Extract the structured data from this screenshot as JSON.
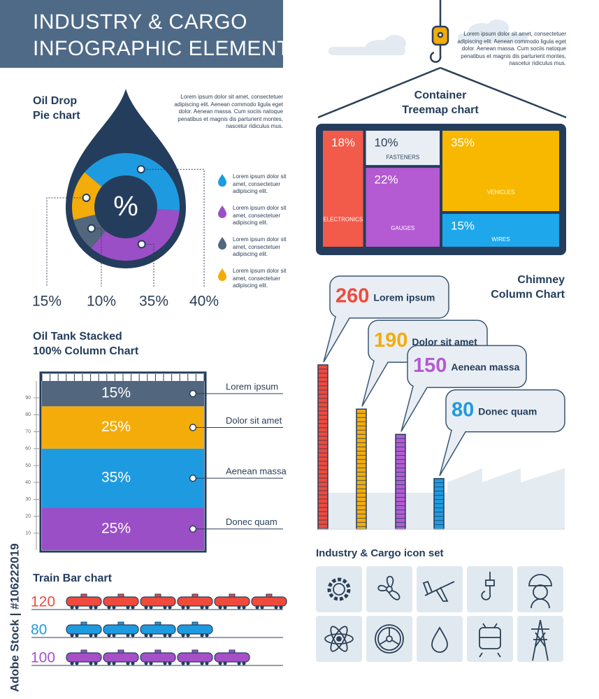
{
  "header": {
    "title_lines": [
      "INDUSTRY & CARGO",
      "INFOGRAPHIC ELEMENTS"
    ]
  },
  "watermark": "Adobe Stock | #106222019",
  "icon_set_title": "Industry & Cargo icon set",
  "chart_data": [
    {
      "type": "pie",
      "title_lines": [
        "Oil Drop",
        "Pie chart"
      ],
      "annotation": "Lorem ipsum dolor sit amet, consectetuer adipiscing elit. Aenean commodo ligula eget dolor. Aenean massa. Cum sociis natoque penatibus et magnis dis parturient montes, nascetur ridiculus mus.",
      "categories": [
        "Lorem ipsum dolor sit amet, consectetuer adipiscing elit.",
        "Lorem ipsum dolor sit amet, consectetuer adipiscing elit.",
        "Lorem ipsum dolor sit amet, consectetuer adipiscing elit.",
        "Lorem ipsum dolor sit amet, consectetuer adipiscing elit."
      ],
      "values": [
        40,
        35,
        10,
        15
      ],
      "value_labels": [
        "40%",
        "35%",
        "10%",
        "15%"
      ],
      "colors": [
        "#1e9be0",
        "#9b4fc7",
        "#52667e",
        "#f4ac0a"
      ],
      "center_label": "%"
    },
    {
      "type": "treemap",
      "title_lines": [
        "Container",
        "Treemap chart"
      ],
      "annotation": "Lorem ipsum dolor sit amet, consectetuer adipiscing elit. Aenean commodo ligula eget dolor. Aenean massa. Cum sociis natoque penatibus et magnis dis parturient montes, nascetur ridiculus mus.",
      "categories": [
        "ELECTRONICS",
        "FASTENERS",
        "GAUGES",
        "VEHICLES",
        "WIRES"
      ],
      "values": [
        18,
        10,
        22,
        35,
        15
      ],
      "value_labels": [
        "18%",
        "10%",
        "22%",
        "35%",
        "15%"
      ],
      "colors": [
        "#f25a4a",
        "#e8eef4",
        "#b45ad2",
        "#f8b800",
        "#1ea7ea"
      ]
    },
    {
      "type": "bar",
      "stacked": true,
      "title_lines": [
        "Oil Tank Stacked",
        "100% Column Chart"
      ],
      "series": [
        {
          "name": "Donec quam",
          "color": "#9b4fc7",
          "values": [
            25
          ],
          "value_labels": [
            "25%"
          ]
        },
        {
          "name": "Aenean massa",
          "color": "#1e9be0",
          "values": [
            35
          ],
          "value_labels": [
            "35%"
          ]
        },
        {
          "name": "Dolor sit amet",
          "color": "#f4ac0a",
          "values": [
            25
          ],
          "value_labels": [
            "25%"
          ]
        },
        {
          "name": "Lorem ipsum",
          "color": "#52667e",
          "values": [
            15
          ],
          "value_labels": [
            "15%"
          ]
        }
      ],
      "ylim": [
        0,
        100
      ],
      "yticks": [
        10,
        20,
        30,
        40,
        50,
        60,
        70,
        80,
        90
      ]
    },
    {
      "type": "bar",
      "title_lines": [
        "Chimney",
        "Column Chart"
      ],
      "categories": [
        "Lorem ipsum",
        "Dolor sit amet",
        "Aenean massa",
        "Donec quam"
      ],
      "values": [
        260,
        190,
        150,
        80
      ],
      "colors": [
        "#f04a3c",
        "#f4ac0a",
        "#b45ad2",
        "#1e9be0"
      ]
    },
    {
      "type": "bar",
      "orientation": "horizontal",
      "title": "Train Bar chart",
      "values": [
        120,
        80,
        100
      ],
      "colors": [
        "#f04a3c",
        "#1e9be0",
        "#a64fc9"
      ]
    }
  ]
}
